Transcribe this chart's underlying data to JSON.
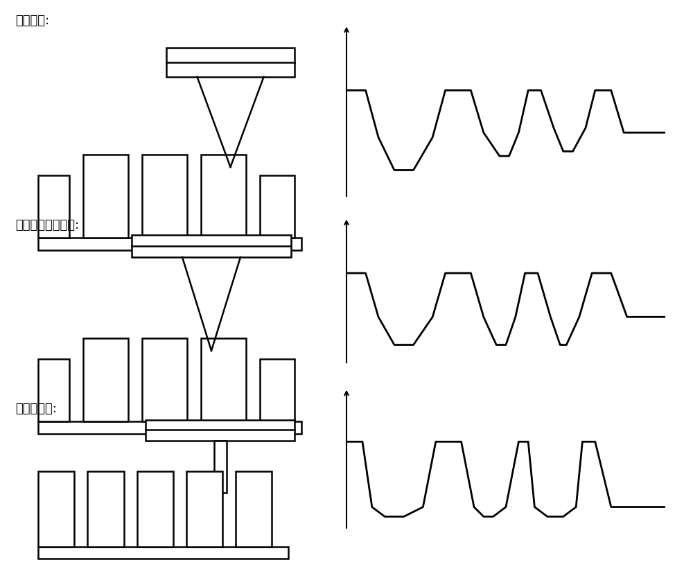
{
  "labels": [
    "普通探针:",
    "一般大高宽比探针:",
    "本方案探针:"
  ],
  "bg_color": "#ffffff",
  "line_color": "#000000",
  "line_width": 1.8,
  "font_size": 13,
  "graph1_x": [
    0.0,
    0.6,
    1.0,
    1.5,
    2.1,
    2.7,
    3.1,
    3.9,
    4.3,
    4.8,
    5.1,
    5.4,
    5.7,
    6.1,
    6.5,
    6.8,
    7.1,
    7.5,
    7.8,
    8.3,
    8.7,
    9.5,
    10.0
  ],
  "graph1_y": [
    2.0,
    2.0,
    1.0,
    0.3,
    0.3,
    1.0,
    2.0,
    2.0,
    1.1,
    0.6,
    0.6,
    1.1,
    2.0,
    2.0,
    1.2,
    0.7,
    0.7,
    1.2,
    2.0,
    2.0,
    1.1,
    1.1,
    1.1
  ],
  "graph2_x": [
    0.0,
    0.6,
    1.0,
    1.5,
    2.1,
    2.7,
    3.1,
    3.9,
    4.3,
    4.7,
    5.0,
    5.3,
    5.6,
    6.0,
    6.4,
    6.7,
    6.9,
    7.3,
    7.7,
    8.3,
    8.8,
    9.5,
    10.0
  ],
  "graph2_y": [
    2.0,
    2.0,
    0.9,
    0.2,
    0.2,
    0.9,
    2.0,
    2.0,
    0.9,
    0.2,
    0.2,
    0.9,
    2.0,
    2.0,
    0.9,
    0.2,
    0.2,
    0.9,
    2.0,
    2.0,
    0.9,
    0.9,
    0.9
  ],
  "graph3_x": [
    0.0,
    0.5,
    0.8,
    1.2,
    1.8,
    2.4,
    2.8,
    3.6,
    4.0,
    4.3,
    4.6,
    5.0,
    5.4,
    5.7,
    5.9,
    6.3,
    6.8,
    7.2,
    7.4,
    7.8,
    8.3,
    9.3,
    10.0
  ],
  "graph3_y": [
    2.0,
    2.0,
    0.3,
    0.05,
    0.05,
    0.3,
    2.0,
    2.0,
    0.3,
    0.05,
    0.05,
    0.3,
    2.0,
    2.0,
    0.3,
    0.05,
    0.05,
    0.3,
    2.0,
    2.0,
    0.3,
    0.3,
    0.3
  ]
}
